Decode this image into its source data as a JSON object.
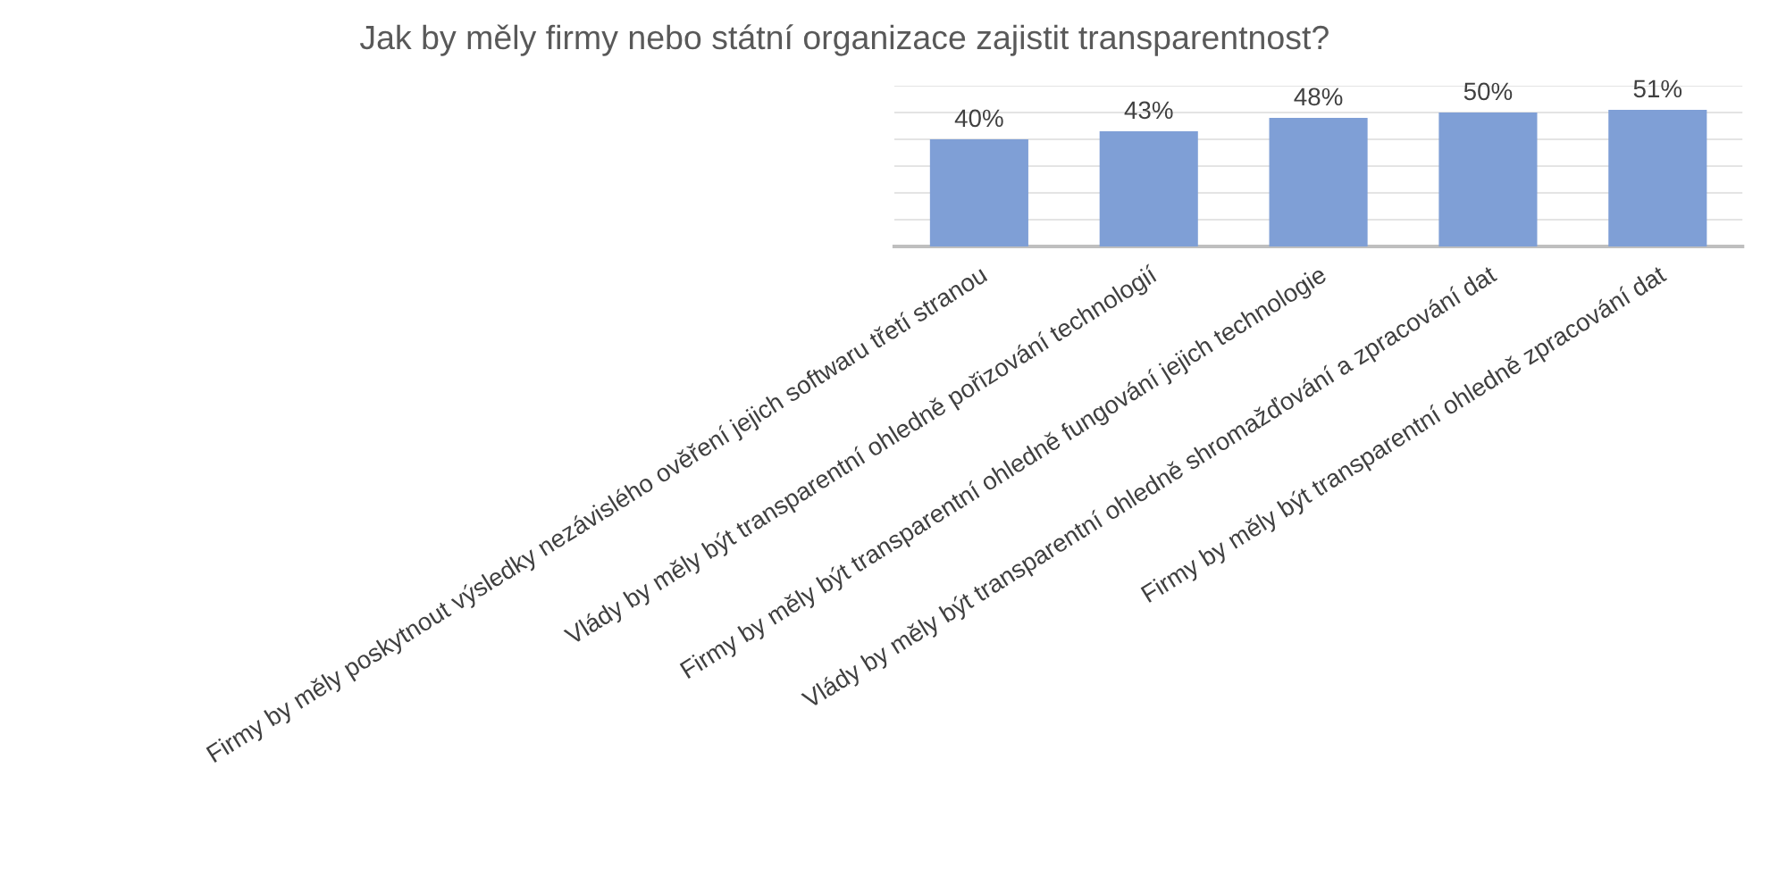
{
  "chart_data": {
    "type": "bar",
    "title": "Jak by měly firmy nebo státní organizace zajistit transparentnost?",
    "categories": [
      "Firmy by měly poskytnout výsledky nezávislého ověření jejich softwaru třetí stranou",
      "Vlády by měly být transparentní ohledně pořizování technologií",
      "Firmy by měly být transparentní ohledně fungování jejich technologie",
      "Vlády by měly být transparentní ohledně shromažďování a zpracování dat",
      "Firmy by měly být transparentní ohledně zpracování dat"
    ],
    "values": [
      40,
      43,
      48,
      50,
      51
    ],
    "color": "#7f9fd6",
    "value_labels": [
      "40%",
      "43%",
      "48%",
      "50%",
      "51%"
    ],
    "ylim": [
      0,
      60
    ],
    "yticks": [
      {
        "value": 0,
        "label": null
      },
      {
        "value": 10,
        "label": null
      },
      {
        "value": 20,
        "label": null
      },
      {
        "value": 30,
        "label": null
      },
      {
        "value": 40,
        "label": null
      },
      {
        "value": 50,
        "label": null
      },
      {
        "value": 60,
        "label": null
      }
    ],
    "grid": "y",
    "legend": false
  }
}
